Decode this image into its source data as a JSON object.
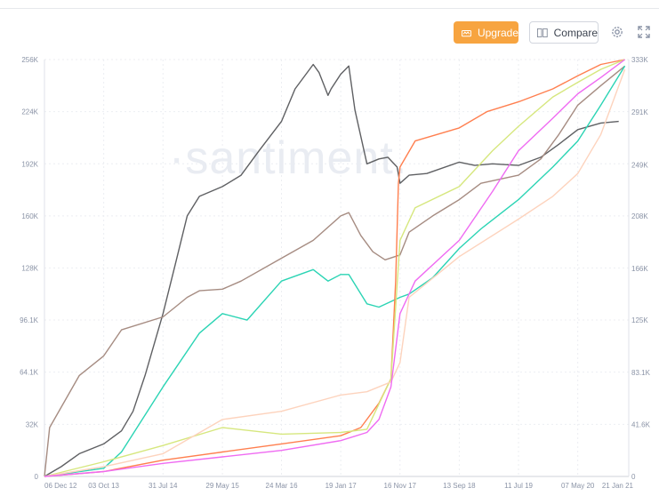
{
  "toolbar": {
    "upgrade_label": "Upgrade",
    "compare_label": "Compare",
    "settings_icon": "gear-icon",
    "fullscreen_icon": "fullscreen-icon",
    "upgrade_color": "#f7a440"
  },
  "watermark": "·santiment.",
  "chart_data": {
    "type": "line",
    "title": "",
    "grid": true,
    "x_range": [
      "2012-12-06",
      "2021-01-21"
    ],
    "x_ticks": [
      {
        "label": "06 Dec 12",
        "date": "2012-12-06"
      },
      {
        "label": "03 Oct 13",
        "date": "2013-10-03"
      },
      {
        "label": "31 Jul 14",
        "date": "2014-07-31"
      },
      {
        "label": "29 May 15",
        "date": "2015-05-29"
      },
      {
        "label": "24 Mar 16",
        "date": "2016-03-24"
      },
      {
        "label": "19 Jan 17",
        "date": "2017-01-19"
      },
      {
        "label": "16 Nov 17",
        "date": "2017-11-16"
      },
      {
        "label": "13 Sep 18",
        "date": "2018-09-13"
      },
      {
        "label": "11 Jul 19",
        "date": "2019-07-11"
      },
      {
        "label": "07 May 20",
        "date": "2020-05-07"
      },
      {
        "label": "21 Jan 21",
        "date": "2021-01-21"
      }
    ],
    "y_left": {
      "range": [
        0,
        256000
      ],
      "ticks": [
        {
          "label": "0",
          "value": 0
        },
        {
          "label": "32K",
          "value": 32000
        },
        {
          "label": "64.1K",
          "value": 64100
        },
        {
          "label": "96.1K",
          "value": 96100
        },
        {
          "label": "128K",
          "value": 128000
        },
        {
          "label": "160K",
          "value": 160000
        },
        {
          "label": "192K",
          "value": 192000
        },
        {
          "label": "224K",
          "value": 224000
        },
        {
          "label": "256K",
          "value": 256000
        }
      ]
    },
    "y_right": {
      "range": [
        0,
        333000
      ],
      "ticks": [
        {
          "label": "0",
          "value": 0
        },
        {
          "label": "41.6K",
          "value": 41600
        },
        {
          "label": "83.1K",
          "value": 83100
        },
        {
          "label": "125K",
          "value": 125000
        },
        {
          "label": "166K",
          "value": 166000
        },
        {
          "label": "208K",
          "value": 208000
        },
        {
          "label": "249K",
          "value": 249000
        },
        {
          "label": "291K",
          "value": 291000
        },
        {
          "label": "333K",
          "value": 333000
        }
      ]
    },
    "series": [
      {
        "color": "#5f6063",
        "axis": "left",
        "points": [
          [
            "2012-12-06",
            0
          ],
          [
            "2013-03-01",
            6000
          ],
          [
            "2013-06-01",
            14000
          ],
          [
            "2013-10-03",
            20000
          ],
          [
            "2014-01-01",
            28000
          ],
          [
            "2014-03-01",
            40000
          ],
          [
            "2014-05-01",
            62000
          ],
          [
            "2014-07-31",
            100000
          ],
          [
            "2014-10-01",
            130000
          ],
          [
            "2014-12-01",
            160000
          ],
          [
            "2015-02-01",
            172000
          ],
          [
            "2015-05-29",
            178000
          ],
          [
            "2015-09-01",
            185000
          ],
          [
            "2015-12-01",
            200000
          ],
          [
            "2016-03-24",
            218000
          ],
          [
            "2016-06-01",
            238000
          ],
          [
            "2016-09-01",
            253000
          ],
          [
            "2016-10-01",
            248000
          ],
          [
            "2016-11-15",
            234000
          ],
          [
            "2016-12-01",
            238000
          ],
          [
            "2017-01-19",
            247000
          ],
          [
            "2017-03-01",
            252000
          ],
          [
            "2017-04-01",
            225000
          ],
          [
            "2017-06-01",
            192000
          ],
          [
            "2017-08-01",
            195000
          ],
          [
            "2017-09-15",
            196000
          ],
          [
            "2017-11-01",
            190000
          ],
          [
            "2017-11-16",
            180000
          ],
          [
            "2018-01-01",
            185000
          ],
          [
            "2018-04-01",
            186000
          ],
          [
            "2018-09-13",
            193000
          ],
          [
            "2018-12-01",
            191000
          ],
          [
            "2019-03-01",
            192000
          ],
          [
            "2019-07-11",
            191000
          ],
          [
            "2019-11-01",
            196000
          ],
          [
            "2020-02-01",
            204000
          ],
          [
            "2020-05-07",
            213000
          ],
          [
            "2020-09-01",
            217000
          ],
          [
            "2020-12-01",
            218000
          ]
        ]
      },
      {
        "color": "#a68c82",
        "axis": "left",
        "points": [
          [
            "2012-12-06",
            0
          ],
          [
            "2013-01-01",
            30000
          ],
          [
            "2013-06-01",
            62000
          ],
          [
            "2013-10-03",
            74000
          ],
          [
            "2014-01-01",
            90000
          ],
          [
            "2014-07-31",
            98000
          ],
          [
            "2014-10-01",
            104000
          ],
          [
            "2014-12-01",
            110000
          ],
          [
            "2015-02-01",
            114000
          ],
          [
            "2015-05-29",
            115000
          ],
          [
            "2015-09-01",
            120000
          ],
          [
            "2016-03-24",
            134000
          ],
          [
            "2016-09-01",
            145000
          ],
          [
            "2017-01-19",
            160000
          ],
          [
            "2017-03-01",
            162000
          ],
          [
            "2017-05-01",
            148000
          ],
          [
            "2017-07-01",
            138000
          ],
          [
            "2017-09-01",
            133000
          ],
          [
            "2017-11-16",
            136000
          ],
          [
            "2018-01-01",
            150000
          ],
          [
            "2018-05-01",
            160000
          ],
          [
            "2018-09-13",
            170000
          ],
          [
            "2019-01-01",
            180000
          ],
          [
            "2019-07-11",
            185000
          ],
          [
            "2019-11-01",
            195000
          ],
          [
            "2020-02-01",
            210000
          ],
          [
            "2020-05-07",
            228000
          ],
          [
            "2020-09-01",
            240000
          ],
          [
            "2021-01-01",
            252000
          ]
        ]
      },
      {
        "color": "#2bd4b4",
        "axis": "left",
        "points": [
          [
            "2012-12-06",
            0
          ],
          [
            "2013-10-03",
            5000
          ],
          [
            "2014-01-01",
            15000
          ],
          [
            "2014-07-31",
            55000
          ],
          [
            "2015-02-01",
            88000
          ],
          [
            "2015-05-29",
            100000
          ],
          [
            "2015-10-01",
            96000
          ],
          [
            "2016-03-24",
            120000
          ],
          [
            "2016-09-01",
            127000
          ],
          [
            "2016-11-15",
            120000
          ],
          [
            "2017-01-19",
            124000
          ],
          [
            "2017-03-01",
            124000
          ],
          [
            "2017-06-01",
            106000
          ],
          [
            "2017-08-01",
            104000
          ],
          [
            "2017-11-16",
            110000
          ],
          [
            "2018-01-01",
            112000
          ],
          [
            "2018-05-01",
            122000
          ],
          [
            "2018-09-13",
            140000
          ],
          [
            "2019-01-01",
            152000
          ],
          [
            "2019-07-11",
            170000
          ],
          [
            "2020-01-01",
            190000
          ],
          [
            "2020-05-07",
            206000
          ],
          [
            "2020-09-01",
            228000
          ],
          [
            "2021-01-01",
            252000
          ]
        ]
      },
      {
        "color": "#ff7f4f",
        "axis": "left",
        "points": [
          [
            "2012-12-06",
            0
          ],
          [
            "2013-10-03",
            3000
          ],
          [
            "2014-07-31",
            10000
          ],
          [
            "2015-05-29",
            15000
          ],
          [
            "2016-03-24",
            20000
          ],
          [
            "2017-01-19",
            25000
          ],
          [
            "2017-05-01",
            30000
          ],
          [
            "2017-08-01",
            45000
          ],
          [
            "2017-10-01",
            60000
          ],
          [
            "2017-10-25",
            120000
          ],
          [
            "2017-11-08",
            180000
          ],
          [
            "2017-11-16",
            190000
          ],
          [
            "2018-02-01",
            206000
          ],
          [
            "2018-09-13",
            214000
          ],
          [
            "2019-02-01",
            224000
          ],
          [
            "2019-07-11",
            230000
          ],
          [
            "2020-01-01",
            238000
          ],
          [
            "2020-05-07",
            246000
          ],
          [
            "2020-09-01",
            253000
          ],
          [
            "2021-01-01",
            256000
          ]
        ]
      },
      {
        "color": "#d6e77e",
        "axis": "left",
        "points": [
          [
            "2012-12-06",
            0
          ],
          [
            "2013-10-03",
            9000
          ],
          [
            "2014-07-31",
            19000
          ],
          [
            "2015-05-29",
            30000
          ],
          [
            "2016-03-24",
            26000
          ],
          [
            "2017-01-19",
            27000
          ],
          [
            "2017-06-01",
            29000
          ],
          [
            "2017-10-01",
            60000
          ],
          [
            "2017-11-16",
            145000
          ],
          [
            "2018-02-01",
            165000
          ],
          [
            "2018-09-13",
            178000
          ],
          [
            "2019-03-01",
            200000
          ],
          [
            "2019-07-11",
            215000
          ],
          [
            "2020-01-01",
            233000
          ],
          [
            "2020-05-07",
            242000
          ],
          [
            "2020-09-01",
            250000
          ],
          [
            "2021-01-01",
            256000
          ]
        ]
      },
      {
        "color": "#fdd3bd",
        "axis": "left",
        "points": [
          [
            "2012-12-06",
            0
          ],
          [
            "2013-10-03",
            6000
          ],
          [
            "2014-07-31",
            14000
          ],
          [
            "2015-05-29",
            35000
          ],
          [
            "2016-03-24",
            40000
          ],
          [
            "2017-01-19",
            50000
          ],
          [
            "2017-06-01",
            52000
          ],
          [
            "2017-10-01",
            58000
          ],
          [
            "2017-11-16",
            70000
          ],
          [
            "2018-01-01",
            110000
          ],
          [
            "2018-09-13",
            135000
          ],
          [
            "2019-07-11",
            158000
          ],
          [
            "2020-01-01",
            172000
          ],
          [
            "2020-05-07",
            186000
          ],
          [
            "2020-09-01",
            210000
          ],
          [
            "2021-01-01",
            250000
          ]
        ]
      },
      {
        "color": "#ef6bf2",
        "axis": "left",
        "points": [
          [
            "2012-12-06",
            0
          ],
          [
            "2013-10-03",
            3000
          ],
          [
            "2014-07-31",
            8000
          ],
          [
            "2015-05-29",
            12000
          ],
          [
            "2016-03-24",
            16000
          ],
          [
            "2017-01-19",
            22000
          ],
          [
            "2017-06-01",
            27000
          ],
          [
            "2017-08-01",
            35000
          ],
          [
            "2017-10-01",
            55000
          ],
          [
            "2017-11-16",
            100000
          ],
          [
            "2018-02-01",
            120000
          ],
          [
            "2018-09-13",
            145000
          ],
          [
            "2019-03-01",
            175000
          ],
          [
            "2019-07-11",
            200000
          ],
          [
            "2020-01-01",
            220000
          ],
          [
            "2020-05-07",
            235000
          ],
          [
            "2020-09-01",
            245000
          ],
          [
            "2021-01-01",
            256000
          ]
        ]
      }
    ]
  }
}
